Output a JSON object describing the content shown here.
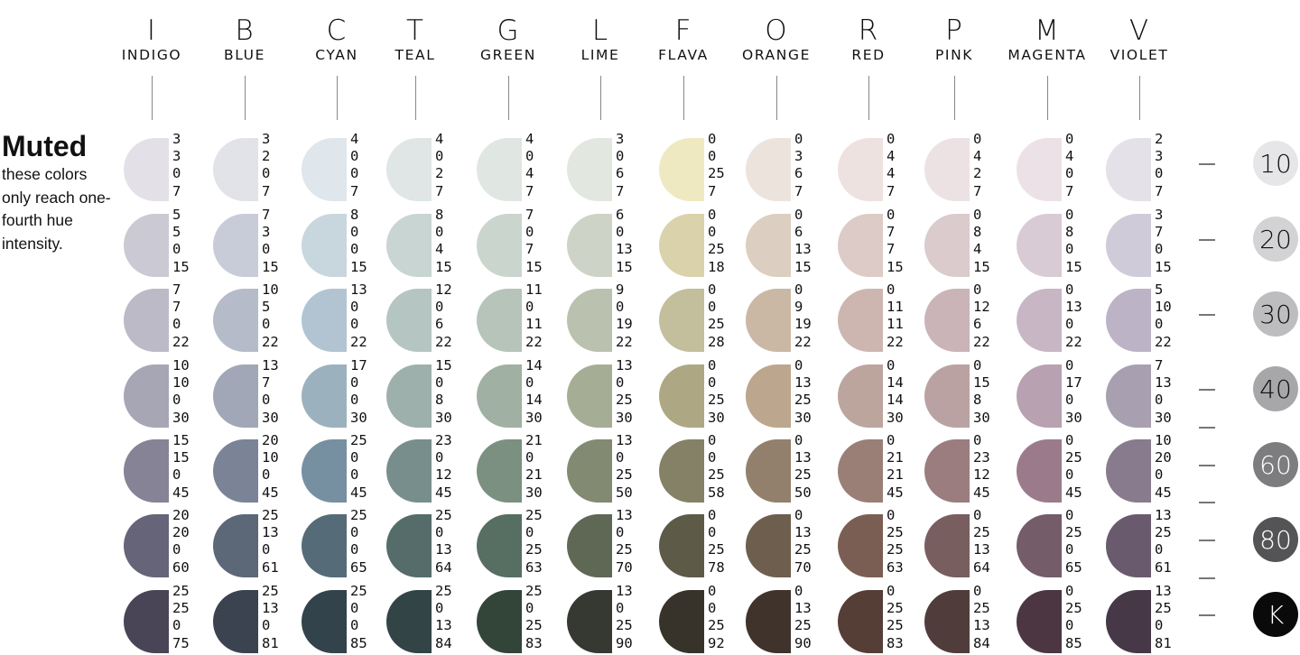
{
  "title": "Muted",
  "subtitle": "these colors only reach one-fourth hue intensity.",
  "columns": [
    {
      "letter": "I",
      "name": "INDIGO"
    },
    {
      "letter": "B",
      "name": "BLUE"
    },
    {
      "letter": "C",
      "name": "CYAN"
    },
    {
      "letter": "T",
      "name": "TEAL"
    },
    {
      "letter": "G",
      "name": "GREEN"
    },
    {
      "letter": "L",
      "name": "LIME"
    },
    {
      "letter": "F",
      "name": "FLAVA"
    },
    {
      "letter": "O",
      "name": "ORANGE"
    },
    {
      "letter": "R",
      "name": "RED"
    },
    {
      "letter": "P",
      "name": "PINK"
    },
    {
      "letter": "M",
      "name": "MAGENTA"
    },
    {
      "letter": "V",
      "name": "VIOLET"
    }
  ],
  "levels": [
    {
      "label": "10",
      "bg": "#e6e6e8",
      "fg": "#111111"
    },
    {
      "label": "20",
      "bg": "#d3d3d5",
      "fg": "#111111"
    },
    {
      "label": "30",
      "bg": "#bdbdbf",
      "fg": "#111111"
    },
    {
      "label": "40",
      "bg": "#a7a7aa",
      "fg": "#111111"
    },
    {
      "label": "60",
      "bg": "#7d7d80",
      "fg": "#ffffff"
    },
    {
      "label": "80",
      "bg": "#545457",
      "fg": "#ffffff"
    },
    {
      "label": "K",
      "bg": "#0a0a0a",
      "fg": "#ffffff"
    }
  ],
  "swatches": [
    [
      {
        "values": [
          "3",
          "3",
          "0",
          "7"
        ],
        "color": "#e3e1e7"
      },
      {
        "values": [
          "3",
          "2",
          "0",
          "7"
        ],
        "color": "#e1e3e9"
      },
      {
        "values": [
          "4",
          "0",
          "0",
          "7"
        ],
        "color": "#dfe6ec"
      },
      {
        "values": [
          "4",
          "0",
          "2",
          "7"
        ],
        "color": "#dfe6e5"
      },
      {
        "values": [
          "4",
          "0",
          "4",
          "7"
        ],
        "color": "#e0e6e2"
      },
      {
        "values": [
          "3",
          "0",
          "6",
          "7"
        ],
        "color": "#e2e7df"
      },
      {
        "values": [
          "0",
          "0",
          "25",
          "7"
        ],
        "color": "#efe9c2"
      },
      {
        "values": [
          "0",
          "3",
          "6",
          "7"
        ],
        "color": "#ede3dd"
      },
      {
        "values": [
          "0",
          "4",
          "4",
          "7"
        ],
        "color": "#ede2df"
      },
      {
        "values": [
          "0",
          "4",
          "2",
          "7"
        ],
        "color": "#ede2e3"
      },
      {
        "values": [
          "0",
          "4",
          "0",
          "7"
        ],
        "color": "#ebe1e7"
      },
      {
        "values": [
          "2",
          "3",
          "0",
          "7"
        ],
        "color": "#e4e2e8"
      }
    ],
    [
      {
        "values": [
          "5",
          "5",
          "0",
          "15"
        ],
        "color": "#cbcad4"
      },
      {
        "values": [
          "7",
          "3",
          "0",
          "15"
        ],
        "color": "#c8ccd8"
      },
      {
        "values": [
          "8",
          "0",
          "0",
          "15"
        ],
        "color": "#c8d6de"
      },
      {
        "values": [
          "8",
          "0",
          "4",
          "15"
        ],
        "color": "#c8d5d3"
      },
      {
        "values": [
          "7",
          "0",
          "7",
          "15"
        ],
        "color": "#cad5ce"
      },
      {
        "values": [
          "6",
          "0",
          "13",
          "15"
        ],
        "color": "#cdd4c7"
      },
      {
        "values": [
          "0",
          "0",
          "25",
          "18"
        ],
        "color": "#d9d2ab"
      },
      {
        "values": [
          "0",
          "6",
          "13",
          "15"
        ],
        "color": "#dccec1"
      },
      {
        "values": [
          "0",
          "7",
          "7",
          "15"
        ],
        "color": "#dccbc7"
      },
      {
        "values": [
          "0",
          "8",
          "4",
          "15"
        ],
        "color": "#dbcbcd"
      },
      {
        "values": [
          "0",
          "8",
          "0",
          "15"
        ],
        "color": "#d9cbd5"
      },
      {
        "values": [
          "3",
          "7",
          "0",
          "15"
        ],
        "color": "#d0cbd9"
      }
    ],
    [
      {
        "values": [
          "7",
          "7",
          "0",
          "22"
        ],
        "color": "#bbbac6"
      },
      {
        "values": [
          "10",
          "5",
          "0",
          "22"
        ],
        "color": "#b5bbc9"
      },
      {
        "values": [
          "13",
          "0",
          "0",
          "22"
        ],
        "color": "#b2c4d1"
      },
      {
        "values": [
          "12",
          "0",
          "6",
          "22"
        ],
        "color": "#b5c5c2"
      },
      {
        "values": [
          "11",
          "0",
          "11",
          "22"
        ],
        "color": "#b6c4ba"
      },
      {
        "values": [
          "9",
          "0",
          "19",
          "22"
        ],
        "color": "#bac2af"
      },
      {
        "values": [
          "0",
          "0",
          "25",
          "28"
        ],
        "color": "#c3be9b"
      },
      {
        "values": [
          "0",
          "9",
          "19",
          "22"
        ],
        "color": "#cab8a5"
      },
      {
        "values": [
          "0",
          "11",
          "11",
          "22"
        ],
        "color": "#cdb6b0"
      },
      {
        "values": [
          "0",
          "12",
          "6",
          "22"
        ],
        "color": "#cab4b7"
      },
      {
        "values": [
          "0",
          "13",
          "0",
          "22"
        ],
        "color": "#c8b6c5"
      },
      {
        "values": [
          "5",
          "10",
          "0",
          "22"
        ],
        "color": "#bcb4c6"
      }
    ],
    [
      {
        "values": [
          "10",
          "10",
          "0",
          "30"
        ],
        "color": "#a7a6b4"
      },
      {
        "values": [
          "13",
          "7",
          "0",
          "30"
        ],
        "color": "#a1a7b6"
      },
      {
        "values": [
          "17",
          "0",
          "0",
          "30"
        ],
        "color": "#9cb1be"
      },
      {
        "values": [
          "15",
          "0",
          "8",
          "30"
        ],
        "color": "#9eb0ac"
      },
      {
        "values": [
          "14",
          "0",
          "14",
          "30"
        ],
        "color": "#a0b0a2"
      },
      {
        "values": [
          "13",
          "0",
          "25",
          "30"
        ],
        "color": "#a5ae95"
      },
      {
        "values": [
          "0",
          "0",
          "25",
          "30"
        ],
        "color": "#ada784"
      },
      {
        "values": [
          "0",
          "13",
          "25",
          "30"
        ],
        "color": "#bca68d"
      },
      {
        "values": [
          "0",
          "14",
          "14",
          "30"
        ],
        "color": "#bca59d"
      },
      {
        "values": [
          "0",
          "15",
          "8",
          "30"
        ],
        "color": "#baa2a3"
      },
      {
        "values": [
          "0",
          "17",
          "0",
          "30"
        ],
        "color": "#b8a1b0"
      },
      {
        "values": [
          "7",
          "13",
          "0",
          "30"
        ],
        "color": "#a8a0b0"
      }
    ],
    [
      {
        "values": [
          "15",
          "15",
          "0",
          "45"
        ],
        "color": "#858395"
      },
      {
        "values": [
          "20",
          "10",
          "0",
          "45"
        ],
        "color": "#7a8496"
      },
      {
        "values": [
          "25",
          "0",
          "0",
          "45"
        ],
        "color": "#7690a2"
      },
      {
        "values": [
          "23",
          "0",
          "12",
          "45"
        ],
        "color": "#778e8c"
      },
      {
        "values": [
          "21",
          "0",
          "21",
          "30"
        ],
        "color": "#7b9080"
      },
      {
        "values": [
          "13",
          "0",
          "25",
          "50"
        ],
        "color": "#828a72"
      },
      {
        "values": [
          "0",
          "0",
          "25",
          "58"
        ],
        "color": "#848167"
      },
      {
        "values": [
          "0",
          "13",
          "25",
          "50"
        ],
        "color": "#93806c"
      },
      {
        "values": [
          "0",
          "21",
          "21",
          "45"
        ],
        "color": "#9a7f76"
      },
      {
        "values": [
          "0",
          "23",
          "12",
          "45"
        ],
        "color": "#9b7d7f"
      },
      {
        "values": [
          "0",
          "25",
          "0",
          "45"
        ],
        "color": "#9b7b8b"
      },
      {
        "values": [
          "10",
          "20",
          "0",
          "45"
        ],
        "color": "#887b8d"
      }
    ],
    [
      {
        "values": [
          "20",
          "20",
          "0",
          "60"
        ],
        "color": "#666478"
      },
      {
        "values": [
          "25",
          "13",
          "0",
          "61"
        ],
        "color": "#5c6778"
      },
      {
        "values": [
          "25",
          "0",
          "0",
          "65"
        ],
        "color": "#556b78"
      },
      {
        "values": [
          "25",
          "0",
          "13",
          "64"
        ],
        "color": "#556c6a"
      },
      {
        "values": [
          "25",
          "0",
          "25",
          "63"
        ],
        "color": "#576f62"
      },
      {
        "values": [
          "13",
          "0",
          "25",
          "70"
        ],
        "color": "#5f6755"
      },
      {
        "values": [
          "0",
          "0",
          "25",
          "78"
        ],
        "color": "#5d5a47"
      },
      {
        "values": [
          "0",
          "13",
          "25",
          "70"
        ],
        "color": "#6d5e4e"
      },
      {
        "values": [
          "0",
          "25",
          "25",
          "63"
        ],
        "color": "#7b5e53"
      },
      {
        "values": [
          "0",
          "25",
          "13",
          "64"
        ],
        "color": "#785e5f"
      },
      {
        "values": [
          "0",
          "25",
          "0",
          "65"
        ],
        "color": "#745c69"
      },
      {
        "values": [
          "13",
          "25",
          "0",
          "61"
        ],
        "color": "#695b6d"
      }
    ],
    [
      {
        "values": [
          "25",
          "25",
          "0",
          "75"
        ],
        "color": "#4a4556"
      },
      {
        "values": [
          "25",
          "13",
          "0",
          "81"
        ],
        "color": "#3b4250"
      },
      {
        "values": [
          "25",
          "0",
          "0",
          "85"
        ],
        "color": "#32434c"
      },
      {
        "values": [
          "25",
          "0",
          "13",
          "84"
        ],
        "color": "#324445"
      },
      {
        "values": [
          "25",
          "0",
          "25",
          "83"
        ],
        "color": "#334539"
      },
      {
        "values": [
          "13",
          "0",
          "25",
          "90"
        ],
        "color": "#363932"
      },
      {
        "values": [
          "0",
          "0",
          "25",
          "92"
        ],
        "color": "#37332a"
      },
      {
        "values": [
          "0",
          "13",
          "25",
          "90"
        ],
        "color": "#3f332b"
      },
      {
        "values": [
          "0",
          "25",
          "25",
          "83"
        ],
        "color": "#553e36"
      },
      {
        "values": [
          "0",
          "25",
          "13",
          "84"
        ],
        "color": "#513c3c"
      },
      {
        "values": [
          "0",
          "25",
          "0",
          "85"
        ],
        "color": "#4b3641"
      },
      {
        "values": [
          "13",
          "25",
          "0",
          "81"
        ],
        "color": "#463846"
      }
    ]
  ]
}
